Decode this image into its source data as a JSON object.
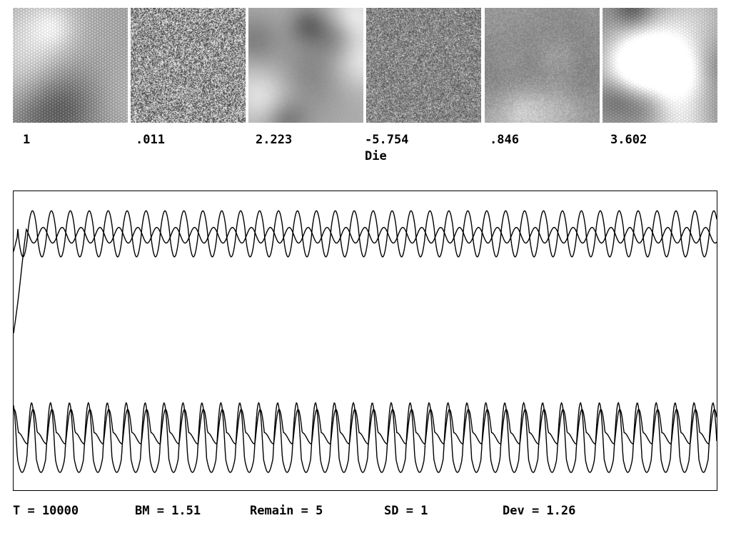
{
  "panels": [
    {
      "label": "1",
      "sublabel": "",
      "texture": "hexagonal-dots",
      "base": "#9a9a9a"
    },
    {
      "label": ".011",
      "sublabel": "",
      "texture": "fine-noise",
      "base": "#7a7a7a"
    },
    {
      "label": "2.223",
      "sublabel": "",
      "texture": "smooth-blobs",
      "base": "#b5b5b5"
    },
    {
      "label": "-5.754",
      "sublabel": "Die",
      "texture": "speckle",
      "base": "#8a8a8a"
    },
    {
      "label": ".846",
      "sublabel": "",
      "texture": "soft-blobs",
      "base": "#9d9d9d"
    },
    {
      "label": "3.602",
      "sublabel": "",
      "texture": "dark-blobs",
      "base": "#7d7d7d"
    }
  ],
  "status": {
    "t": "T = 10000",
    "bm": "BM = 1.51",
    "remain": "Remain = 5",
    "sd": "SD = 1",
    "dev": "Dev = 1.26"
  },
  "plot": {
    "line_color": "#000000",
    "cycles": 37,
    "trace_count": 4
  }
}
